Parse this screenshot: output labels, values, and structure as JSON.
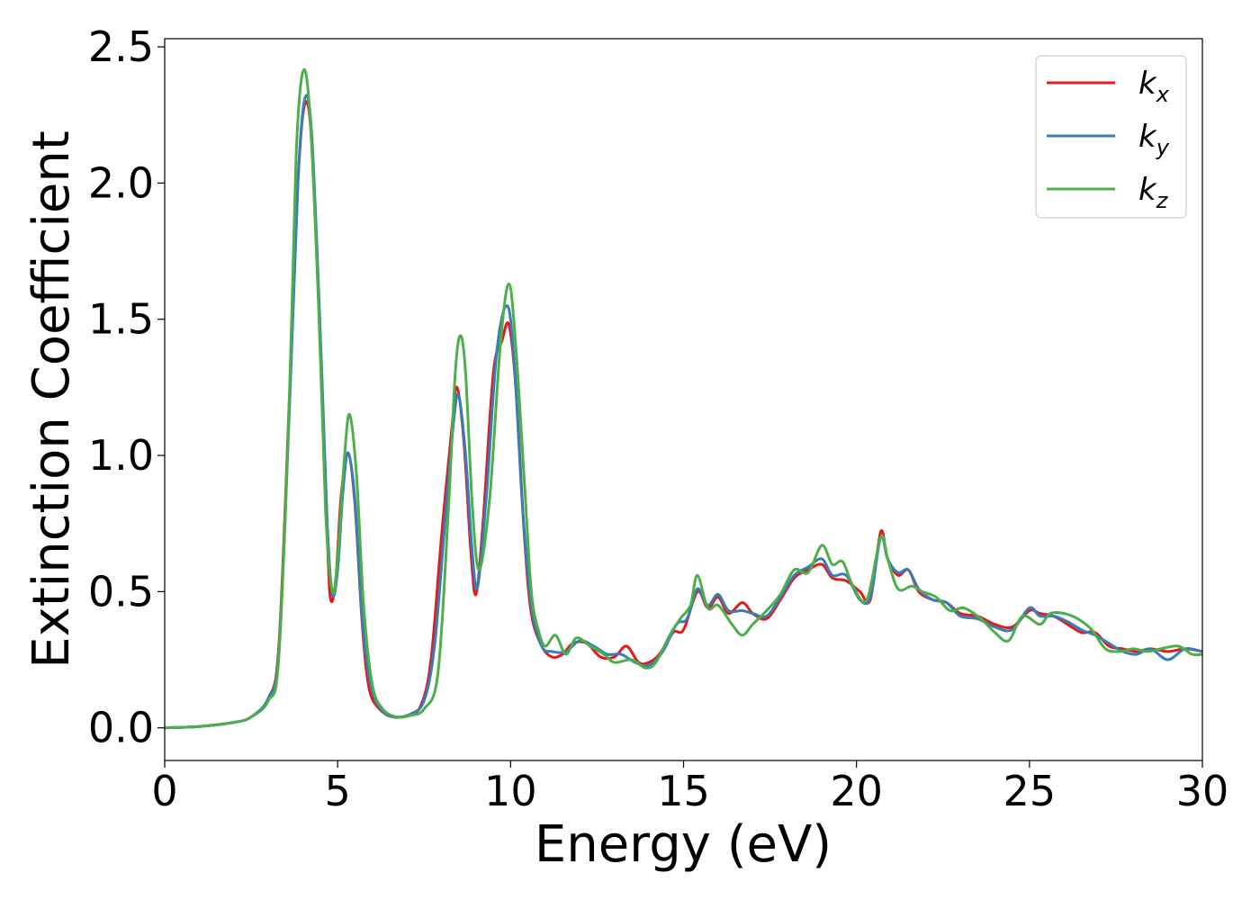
{
  "chart_data": {
    "type": "line",
    "xlabel": "Energy (eV)",
    "ylabel": "Extinction Coefficient",
    "xlim": [
      0,
      30
    ],
    "ylim": [
      -0.12,
      2.53
    ],
    "xticks": [
      0,
      5,
      10,
      15,
      20,
      25,
      30
    ],
    "xtick_labels": [
      "0",
      "5",
      "10",
      "15",
      "20",
      "25",
      "30"
    ],
    "yticks": [
      0.0,
      0.5,
      1.0,
      1.5,
      2.0,
      2.5
    ],
    "ytick_labels": [
      "0.0",
      "0.5",
      "1.0",
      "1.5",
      "2.0",
      "2.5"
    ],
    "grid": false,
    "legend_position": "top-right",
    "series": [
      {
        "name": "k",
        "subscript": "x",
        "color": "#e41a1c",
        "points": [
          [
            0,
            0.0
          ],
          [
            1,
            0.005
          ],
          [
            2,
            0.02
          ],
          [
            2.5,
            0.04
          ],
          [
            3,
            0.11
          ],
          [
            3.3,
            0.3
          ],
          [
            3.6,
            1.2
          ],
          [
            3.85,
            2.0
          ],
          [
            4.05,
            2.29
          ],
          [
            4.25,
            2.15
          ],
          [
            4.5,
            1.4
          ],
          [
            4.7,
            0.7
          ],
          [
            4.8,
            0.47
          ],
          [
            4.95,
            0.55
          ],
          [
            5.1,
            0.85
          ],
          [
            5.3,
            1.01
          ],
          [
            5.5,
            0.82
          ],
          [
            5.7,
            0.4
          ],
          [
            5.9,
            0.15
          ],
          [
            6.2,
            0.07
          ],
          [
            6.6,
            0.04
          ],
          [
            7.0,
            0.045
          ],
          [
            7.4,
            0.08
          ],
          [
            7.7,
            0.25
          ],
          [
            8.0,
            0.7
          ],
          [
            8.3,
            1.1
          ],
          [
            8.45,
            1.25
          ],
          [
            8.65,
            1.05
          ],
          [
            8.85,
            0.65
          ],
          [
            9.0,
            0.49
          ],
          [
            9.2,
            0.75
          ],
          [
            9.5,
            1.3
          ],
          [
            9.75,
            1.42
          ],
          [
            9.95,
            1.48
          ],
          [
            10.15,
            1.25
          ],
          [
            10.4,
            0.7
          ],
          [
            10.6,
            0.42
          ],
          [
            10.9,
            0.3
          ],
          [
            11.2,
            0.26
          ],
          [
            11.5,
            0.27
          ],
          [
            11.8,
            0.31
          ],
          [
            12.2,
            0.31
          ],
          [
            12.6,
            0.26
          ],
          [
            13.0,
            0.26
          ],
          [
            13.35,
            0.3
          ],
          [
            13.7,
            0.24
          ],
          [
            14.0,
            0.24
          ],
          [
            14.3,
            0.27
          ],
          [
            14.7,
            0.35
          ],
          [
            15.0,
            0.36
          ],
          [
            15.4,
            0.5
          ],
          [
            15.7,
            0.44
          ],
          [
            16.0,
            0.48
          ],
          [
            16.3,
            0.42
          ],
          [
            16.7,
            0.46
          ],
          [
            17.0,
            0.42
          ],
          [
            17.4,
            0.4
          ],
          [
            17.8,
            0.47
          ],
          [
            18.2,
            0.55
          ],
          [
            18.6,
            0.58
          ],
          [
            19.0,
            0.6
          ],
          [
            19.3,
            0.55
          ],
          [
            19.7,
            0.54
          ],
          [
            20.1,
            0.5
          ],
          [
            20.4,
            0.47
          ],
          [
            20.7,
            0.72
          ],
          [
            20.9,
            0.62
          ],
          [
            21.2,
            0.56
          ],
          [
            21.5,
            0.58
          ],
          [
            21.8,
            0.5
          ],
          [
            22.2,
            0.47
          ],
          [
            22.6,
            0.46
          ],
          [
            23.0,
            0.42
          ],
          [
            23.5,
            0.41
          ],
          [
            24.0,
            0.38
          ],
          [
            24.5,
            0.37
          ],
          [
            25.0,
            0.43
          ],
          [
            25.3,
            0.42
          ],
          [
            25.7,
            0.41
          ],
          [
            26.1,
            0.38
          ],
          [
            26.5,
            0.35
          ],
          [
            26.9,
            0.35
          ],
          [
            27.3,
            0.3
          ],
          [
            27.7,
            0.29
          ],
          [
            28.1,
            0.28
          ],
          [
            28.5,
            0.29
          ],
          [
            29.0,
            0.28
          ],
          [
            29.5,
            0.29
          ],
          [
            30,
            0.28
          ]
        ]
      },
      {
        "name": "k",
        "subscript": "y",
        "color": "#377eb8",
        "points": [
          [
            0,
            0.0
          ],
          [
            1,
            0.005
          ],
          [
            2,
            0.02
          ],
          [
            2.5,
            0.04
          ],
          [
            3,
            0.11
          ],
          [
            3.3,
            0.28
          ],
          [
            3.6,
            1.15
          ],
          [
            3.85,
            2.0
          ],
          [
            4.05,
            2.31
          ],
          [
            4.25,
            2.18
          ],
          [
            4.5,
            1.45
          ],
          [
            4.7,
            0.75
          ],
          [
            4.85,
            0.49
          ],
          [
            5.0,
            0.58
          ],
          [
            5.15,
            0.86
          ],
          [
            5.3,
            1.01
          ],
          [
            5.5,
            0.84
          ],
          [
            5.7,
            0.42
          ],
          [
            5.95,
            0.16
          ],
          [
            6.3,
            0.06
          ],
          [
            6.7,
            0.04
          ],
          [
            7.1,
            0.05
          ],
          [
            7.5,
            0.1
          ],
          [
            7.8,
            0.3
          ],
          [
            8.1,
            0.75
          ],
          [
            8.35,
            1.12
          ],
          [
            8.5,
            1.22
          ],
          [
            8.7,
            1.0
          ],
          [
            8.9,
            0.63
          ],
          [
            9.05,
            0.52
          ],
          [
            9.3,
            0.85
          ],
          [
            9.6,
            1.38
          ],
          [
            9.9,
            1.55
          ],
          [
            10.1,
            1.35
          ],
          [
            10.35,
            0.8
          ],
          [
            10.6,
            0.45
          ],
          [
            10.9,
            0.3
          ],
          [
            11.2,
            0.28
          ],
          [
            11.6,
            0.28
          ],
          [
            12.0,
            0.32
          ],
          [
            12.4,
            0.3
          ],
          [
            12.8,
            0.27
          ],
          [
            13.2,
            0.27
          ],
          [
            13.6,
            0.24
          ],
          [
            14.0,
            0.23
          ],
          [
            14.4,
            0.28
          ],
          [
            14.8,
            0.38
          ],
          [
            15.1,
            0.4
          ],
          [
            15.4,
            0.51
          ],
          [
            15.7,
            0.45
          ],
          [
            16.0,
            0.49
          ],
          [
            16.3,
            0.43
          ],
          [
            16.7,
            0.43
          ],
          [
            17.0,
            0.42
          ],
          [
            17.4,
            0.41
          ],
          [
            17.8,
            0.48
          ],
          [
            18.2,
            0.56
          ],
          [
            18.6,
            0.59
          ],
          [
            19.0,
            0.62
          ],
          [
            19.3,
            0.56
          ],
          [
            19.7,
            0.56
          ],
          [
            20.1,
            0.47
          ],
          [
            20.4,
            0.48
          ],
          [
            20.7,
            0.7
          ],
          [
            20.9,
            0.62
          ],
          [
            21.2,
            0.57
          ],
          [
            21.5,
            0.58
          ],
          [
            21.8,
            0.51
          ],
          [
            22.2,
            0.47
          ],
          [
            22.6,
            0.46
          ],
          [
            23.0,
            0.41
          ],
          [
            23.5,
            0.4
          ],
          [
            24.0,
            0.37
          ],
          [
            24.5,
            0.36
          ],
          [
            25.0,
            0.44
          ],
          [
            25.3,
            0.41
          ],
          [
            25.7,
            0.41
          ],
          [
            26.1,
            0.39
          ],
          [
            26.5,
            0.36
          ],
          [
            26.9,
            0.34
          ],
          [
            27.3,
            0.31
          ],
          [
            27.7,
            0.28
          ],
          [
            28.1,
            0.27
          ],
          [
            28.5,
            0.29
          ],
          [
            29.0,
            0.25
          ],
          [
            29.5,
            0.29
          ],
          [
            30,
            0.28
          ]
        ]
      },
      {
        "name": "k",
        "subscript": "z",
        "color": "#4daf4a",
        "points": [
          [
            0,
            0.0
          ],
          [
            1,
            0.005
          ],
          [
            2,
            0.02
          ],
          [
            2.5,
            0.04
          ],
          [
            3,
            0.1
          ],
          [
            3.3,
            0.26
          ],
          [
            3.6,
            1.2
          ],
          [
            3.8,
            2.1
          ],
          [
            4.0,
            2.41
          ],
          [
            4.2,
            2.25
          ],
          [
            4.45,
            1.55
          ],
          [
            4.65,
            0.8
          ],
          [
            4.85,
            0.5
          ],
          [
            5.0,
            0.62
          ],
          [
            5.2,
            1.0
          ],
          [
            5.35,
            1.15
          ],
          [
            5.55,
            0.92
          ],
          [
            5.75,
            0.45
          ],
          [
            6.0,
            0.16
          ],
          [
            6.3,
            0.07
          ],
          [
            6.7,
            0.04
          ],
          [
            7.1,
            0.045
          ],
          [
            7.5,
            0.07
          ],
          [
            7.9,
            0.2
          ],
          [
            8.2,
            0.8
          ],
          [
            8.4,
            1.3
          ],
          [
            8.55,
            1.44
          ],
          [
            8.7,
            1.3
          ],
          [
            8.9,
            0.8
          ],
          [
            9.1,
            0.58
          ],
          [
            9.4,
            0.85
          ],
          [
            9.7,
            1.4
          ],
          [
            9.95,
            1.63
          ],
          [
            10.15,
            1.4
          ],
          [
            10.4,
            0.9
          ],
          [
            10.6,
            0.5
          ],
          [
            10.8,
            0.36
          ],
          [
            11.0,
            0.3
          ],
          [
            11.3,
            0.34
          ],
          [
            11.6,
            0.27
          ],
          [
            11.9,
            0.33
          ],
          [
            12.3,
            0.3
          ],
          [
            12.7,
            0.27
          ],
          [
            13.0,
            0.24
          ],
          [
            13.5,
            0.25
          ],
          [
            13.9,
            0.22
          ],
          [
            14.2,
            0.24
          ],
          [
            14.6,
            0.34
          ],
          [
            14.9,
            0.4
          ],
          [
            15.2,
            0.45
          ],
          [
            15.4,
            0.56
          ],
          [
            15.7,
            0.44
          ],
          [
            16.0,
            0.45
          ],
          [
            16.4,
            0.38
          ],
          [
            16.7,
            0.34
          ],
          [
            17.0,
            0.38
          ],
          [
            17.4,
            0.43
          ],
          [
            17.8,
            0.49
          ],
          [
            18.2,
            0.58
          ],
          [
            18.6,
            0.57
          ],
          [
            19.0,
            0.67
          ],
          [
            19.3,
            0.6
          ],
          [
            19.6,
            0.61
          ],
          [
            19.9,
            0.52
          ],
          [
            20.3,
            0.47
          ],
          [
            20.7,
            0.7
          ],
          [
            20.9,
            0.62
          ],
          [
            21.2,
            0.51
          ],
          [
            21.6,
            0.52
          ],
          [
            21.9,
            0.5
          ],
          [
            22.3,
            0.48
          ],
          [
            22.7,
            0.43
          ],
          [
            23.1,
            0.44
          ],
          [
            23.6,
            0.4
          ],
          [
            24.0,
            0.35
          ],
          [
            24.4,
            0.32
          ],
          [
            24.8,
            0.41
          ],
          [
            25.3,
            0.38
          ],
          [
            25.6,
            0.42
          ],
          [
            26.0,
            0.42
          ],
          [
            26.4,
            0.4
          ],
          [
            26.8,
            0.36
          ],
          [
            27.2,
            0.29
          ],
          [
            27.6,
            0.28
          ],
          [
            28.0,
            0.29
          ],
          [
            28.4,
            0.28
          ],
          [
            28.8,
            0.29
          ],
          [
            29.3,
            0.3
          ],
          [
            29.7,
            0.27
          ],
          [
            30,
            0.27
          ]
        ]
      }
    ]
  }
}
